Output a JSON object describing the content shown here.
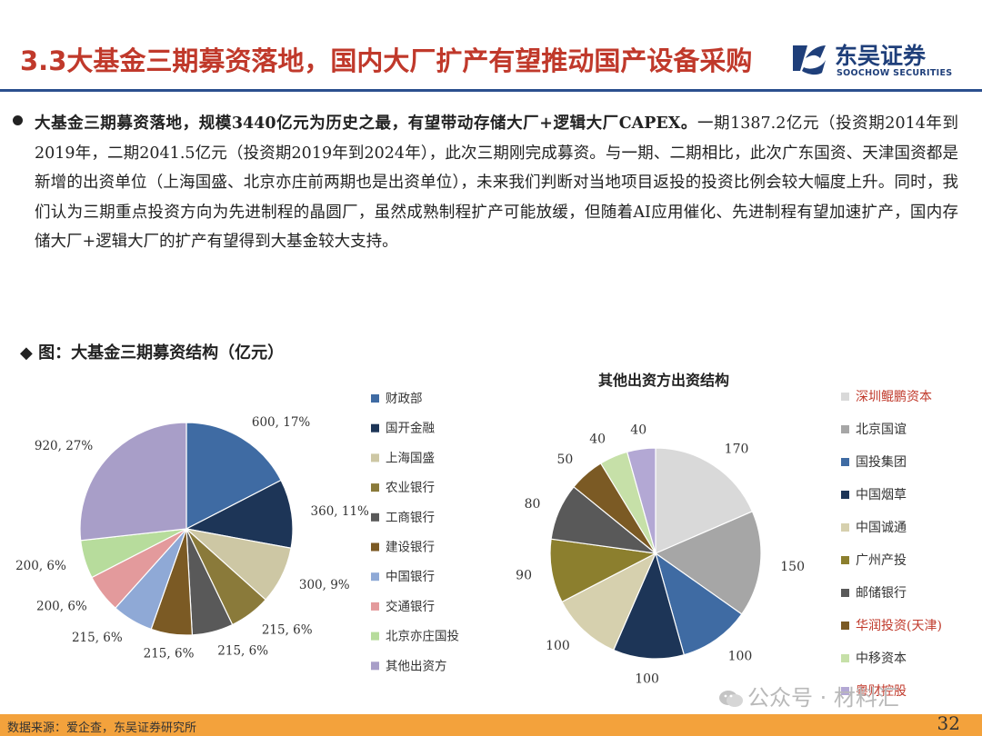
{
  "header": {
    "title": "3.3大基金三期募资落地，国内大厂扩产有望推动国产设备采购",
    "logo_cn": "东吴证券",
    "logo_en": "SOOCHOW SECURITIES",
    "colors": {
      "title": "#c0392b",
      "rule": "#2b4f8e",
      "brand": "#1f3f7a"
    }
  },
  "bullet": {
    "lead": "大基金三期募资落地，规模3440亿元为历史之最，有望带动存储大厂+逻辑大厂CAPEX。",
    "body": "一期1387.2亿元（投资期2014年到2019年，二期2041.5亿元（投资期2019年到2024年），此次三期刚完成募资。与一期、二期相比，此次广东国资、天津国资都是新增的出资单位（上海国盛、北京亦庄前两期也是出资单位），未来我们判断对当地项目返投的投资比例会较大幅度上升。同时，我们认为三期重点投资方向为先进制程的晶圆厂，虽然成熟制程扩产可能放缓，但随着AI应用催化、先进制程有望加速扩产，国内存储大厂+逻辑大厂的扩产有望得到大基金较大支持。"
  },
  "figure_label": "◆ 图：大基金三期募资结构（亿元）",
  "chart_data": [
    {
      "type": "pie",
      "title": "",
      "categories": [
        "财政部",
        "国开金融",
        "上海国盛",
        "农业银行",
        "工商银行",
        "建设银行",
        "中国银行",
        "交通银行",
        "北京亦庄国投",
        "其他出资方"
      ],
      "values": [
        600,
        360,
        300,
        215,
        215,
        215,
        215,
        200,
        200,
        920
      ],
      "data_labels": [
        "600, 17%",
        "360, 11%",
        "300, 9%",
        "215, 6%",
        "215, 6%",
        "215, 6%",
        "215, 6%",
        "200, 6%",
        "200, 6%",
        "920, 27%"
      ],
      "colors": [
        "#3f6ba3",
        "#1d3557",
        "#cdc7a4",
        "#8a7a3a",
        "#595959",
        "#7b5a24",
        "#8fa9d6",
        "#e39a9c",
        "#b7dc9c",
        "#a89ec8"
      ],
      "legend_position": "right"
    },
    {
      "type": "pie",
      "title": "其他出资方出资结构",
      "categories": [
        "深圳鲲鹏资本",
        "北京国谊",
        "国投集团",
        "中国烟草",
        "中国诚通",
        "广州产投",
        "邮储银行",
        "华润投资(天津)",
        "中移资本",
        "粤财控股"
      ],
      "values": [
        170,
        150,
        100,
        100,
        100,
        90,
        80,
        50,
        40,
        40
      ],
      "data_labels": [
        "170",
        "150",
        "100",
        "100",
        "100",
        "90",
        "80",
        "50",
        "40",
        "40"
      ],
      "colors": [
        "#d9d9d9",
        "#a6a6a6",
        "#3f6ba3",
        "#1d3557",
        "#d6d0ae",
        "#8c7f2e",
        "#595959",
        "#7b5a24",
        "#c6e0a8",
        "#b3a8d4"
      ],
      "legend_text_colors": [
        "#c0392b",
        "#333333",
        "#333333",
        "#333333",
        "#333333",
        "#333333",
        "#333333",
        "#c0392b",
        "#333333",
        "#c0392b"
      ],
      "legend_position": "right"
    }
  ],
  "footer": {
    "source": "数据来源：爱企查，东吴证券研究所",
    "page": "32",
    "bar_color": "#f3a23c"
  },
  "watermark": "公众号 · 材料汇"
}
